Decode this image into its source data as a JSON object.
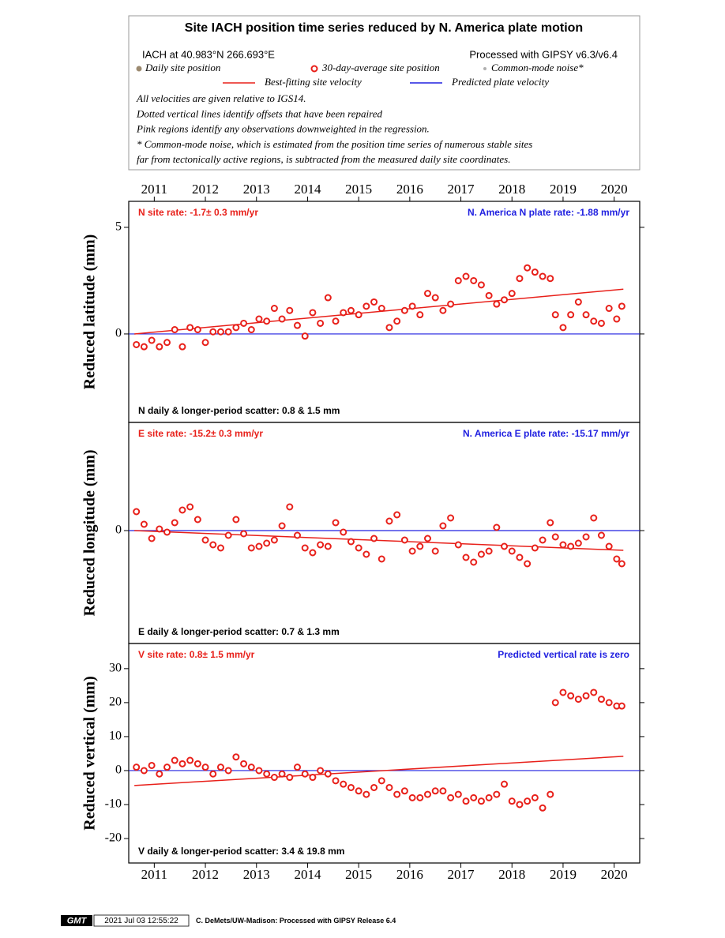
{
  "header": {
    "title": "Site IACH position time series reduced by N. America plate motion",
    "site": "IACH at 40.983°N 266.693°E",
    "processed": "Processed with GIPSY v6.3/v6.4",
    "legend": [
      {
        "label": "Daily site position",
        "color": "#9c8a70"
      },
      {
        "label": "30-day-average site position",
        "color": "#e8201a"
      },
      {
        "label": "Common-mode noise*",
        "color": "#b0b0b0"
      },
      {
        "label": "Best-fitting site velocity",
        "color": "#e8201a"
      },
      {
        "label": "Predicted plate velocity",
        "color": "#2020e0"
      }
    ],
    "notes": [
      "All velocities are given relative to IGS14.",
      "Dotted vertical lines identify offsets that have been repaired",
      "Pink regions identify any observations downweighted in the regression.",
      "* Common-mode noise, which is estimated from the position time series of numerous stable sites",
      "far from tectonically active regions, is subtracted from the measured daily site coordinates."
    ]
  },
  "chart_data": [
    {
      "type": "scatter",
      "ylabel": "Reduced latitude (mm)",
      "rate_label": "N site rate:  -1.7± 0.3 mm/yr",
      "plate_label": "N. America N plate rate: -1.88 mm/yr",
      "scatter_label": "N daily & longer-period scatter:   0.8 &   1.5 mm",
      "xlim": [
        2010.5,
        2020.5
      ],
      "xticks": [
        2011,
        2012,
        2013,
        2014,
        2015,
        2016,
        2017,
        2018,
        2019,
        2020
      ],
      "ylim": [
        -4.15,
        6.22
      ],
      "yticks": [
        0,
        5
      ],
      "x": [
        2010.65,
        2010.8,
        2010.95,
        2011.1,
        2011.25,
        2011.4,
        2011.55,
        2011.7,
        2011.85,
        2012.0,
        2012.15,
        2012.3,
        2012.45,
        2012.6,
        2012.75,
        2012.9,
        2013.05,
        2013.2,
        2013.35,
        2013.5,
        2013.65,
        2013.8,
        2013.95,
        2014.1,
        2014.25,
        2014.4,
        2014.55,
        2014.7,
        2014.85,
        2015.0,
        2015.15,
        2015.3,
        2015.45,
        2015.6,
        2015.75,
        2015.9,
        2016.05,
        2016.2,
        2016.35,
        2016.5,
        2016.65,
        2016.8,
        2016.95,
        2017.1,
        2017.25,
        2017.4,
        2017.55,
        2017.7,
        2017.85,
        2018.0,
        2018.15,
        2018.3,
        2018.45,
        2018.6,
        2018.75,
        2018.85,
        2019.0,
        2019.15,
        2019.3,
        2019.45,
        2019.6,
        2019.75,
        2019.9,
        2020.05,
        2020.15
      ],
      "values": [
        -0.5,
        -0.6,
        -0.3,
        -0.6,
        -0.4,
        0.2,
        -0.6,
        0.3,
        0.2,
        -0.4,
        0.1,
        0.1,
        0.1,
        0.3,
        0.5,
        0.2,
        0.7,
        0.6,
        1.2,
        0.7,
        1.1,
        0.4,
        -0.1,
        1.0,
        0.5,
        1.7,
        0.6,
        1.0,
        1.1,
        0.9,
        1.3,
        1.5,
        1.2,
        0.3,
        0.6,
        1.1,
        1.3,
        0.9,
        1.9,
        1.7,
        1.1,
        1.4,
        2.5,
        2.7,
        2.5,
        2.3,
        1.8,
        1.4,
        1.6,
        1.9,
        2.6,
        3.1,
        2.9,
        2.7,
        2.6,
        0.9,
        0.3,
        0.9,
        1.5,
        0.9,
        0.6,
        0.5,
        1.2,
        0.7,
        1.3
      ],
      "fit": {
        "x": [
          2010.61,
          2020.18
        ],
        "values": [
          0,
          2.1
        ]
      },
      "plate": {
        "values": [
          0,
          0
        ]
      }
    },
    {
      "type": "scatter",
      "ylabel": "Reduced longitude (mm)",
      "rate_label": "E site rate:  -15.2± 0.3 mm/yr",
      "plate_label": "N. America E plate rate: -15.17 mm/yr",
      "scatter_label": "E daily & longer-period scatter:   0.7 &   1.3 mm",
      "xlim": [
        2010.5,
        2020.5
      ],
      "xticks": [
        2011,
        2012,
        2013,
        2014,
        2015,
        2016,
        2017,
        2018,
        2019,
        2020
      ],
      "ylim": [
        -7.15,
        6.85
      ],
      "yticks": [
        0
      ],
      "x": [
        2010.65,
        2010.8,
        2010.95,
        2011.1,
        2011.25,
        2011.4,
        2011.55,
        2011.7,
        2011.85,
        2012.0,
        2012.15,
        2012.3,
        2012.45,
        2012.6,
        2012.75,
        2012.9,
        2013.05,
        2013.2,
        2013.35,
        2013.5,
        2013.65,
        2013.8,
        2013.95,
        2014.1,
        2014.25,
        2014.4,
        2014.55,
        2014.7,
        2014.85,
        2015.0,
        2015.15,
        2015.3,
        2015.45,
        2015.6,
        2015.75,
        2015.9,
        2016.05,
        2016.2,
        2016.35,
        2016.5,
        2016.65,
        2016.8,
        2016.95,
        2017.1,
        2017.25,
        2017.4,
        2017.55,
        2017.7,
        2017.85,
        2018.0,
        2018.15,
        2018.3,
        2018.45,
        2018.6,
        2018.75,
        2018.85,
        2019.0,
        2019.15,
        2019.3,
        2019.45,
        2019.6,
        2019.75,
        2019.9,
        2020.05,
        2020.15
      ],
      "values": [
        1.2,
        0.4,
        -0.5,
        0.1,
        -0.1,
        0.5,
        1.3,
        1.5,
        0.7,
        -0.6,
        -0.9,
        -1.1,
        -0.3,
        0.7,
        -0.2,
        -1.1,
        -1.0,
        -0.8,
        -0.6,
        0.3,
        1.5,
        -0.3,
        -1.1,
        -1.4,
        -0.9,
        -1.0,
        0.5,
        -0.1,
        -0.7,
        -1.1,
        -1.5,
        -0.5,
        -1.8,
        0.6,
        1.0,
        -0.6,
        -1.3,
        -1.0,
        -0.5,
        -1.3,
        0.3,
        0.8,
        -0.9,
        -1.7,
        -2.0,
        -1.5,
        -1.3,
        0.2,
        -1.0,
        -1.3,
        -1.7,
        -2.1,
        -1.1,
        -0.6,
        0.5,
        -0.4,
        -0.9,
        -1.0,
        -0.8,
        -0.4,
        0.8,
        -0.3,
        -1.0,
        -1.8,
        -2.1
      ],
      "fit": {
        "x": [
          2010.61,
          2020.18
        ],
        "values": [
          0,
          -1.25
        ]
      },
      "plate": {
        "values": [
          0,
          0
        ]
      }
    },
    {
      "type": "scatter",
      "ylabel": "Reduced vertical (mm)",
      "rate_label": "V site rate:   0.8± 1.5 mm/yr",
      "plate_label": "Predicted vertical rate is zero",
      "scatter_label": "V daily & longer-period scatter:   3.4 &  19.8 mm",
      "xlim": [
        2010.5,
        2020.5
      ],
      "xticks": [
        2011,
        2012,
        2013,
        2014,
        2015,
        2016,
        2017,
        2018,
        2019,
        2020
      ],
      "ylim": [
        -27.2,
        37.4
      ],
      "yticks": [
        -20,
        -10,
        0,
        10,
        20,
        30
      ],
      "x": [
        2010.65,
        2010.8,
        2010.95,
        2011.1,
        2011.25,
        2011.4,
        2011.55,
        2011.7,
        2011.85,
        2012.0,
        2012.15,
        2012.3,
        2012.45,
        2012.6,
        2012.75,
        2012.9,
        2013.05,
        2013.2,
        2013.35,
        2013.5,
        2013.65,
        2013.8,
        2013.95,
        2014.1,
        2014.25,
        2014.4,
        2014.55,
        2014.7,
        2014.85,
        2015.0,
        2015.15,
        2015.3,
        2015.45,
        2015.6,
        2015.75,
        2015.9,
        2016.05,
        2016.2,
        2016.35,
        2016.5,
        2016.65,
        2016.8,
        2016.95,
        2017.1,
        2017.25,
        2017.4,
        2017.55,
        2017.7,
        2017.85,
        2018.0,
        2018.15,
        2018.3,
        2018.45,
        2018.6,
        2018.75,
        2018.85,
        2019.0,
        2019.15,
        2019.3,
        2019.45,
        2019.6,
        2019.75,
        2019.9,
        2020.05,
        2020.15
      ],
      "values": [
        1,
        0,
        1.5,
        -1,
        1,
        3,
        2,
        3,
        2,
        1,
        -1,
        1,
        0,
        4,
        2,
        1,
        0,
        -1,
        -2,
        -1,
        -2,
        1,
        -1,
        -2,
        0,
        -1,
        -3,
        -4,
        -5,
        -6,
        -7,
        -5,
        -3,
        -5,
        -7,
        -6,
        -8,
        -8,
        -7,
        -6,
        -6,
        -8,
        -7,
        -9,
        -8,
        -9,
        -8,
        -7,
        -4,
        -9,
        -10,
        -9,
        -8,
        -11,
        -7,
        20,
        23,
        22,
        21,
        22,
        23,
        21,
        20,
        19,
        19
      ],
      "fit": {
        "x": [
          2010.61,
          2020.18
        ],
        "values": [
          -4.4,
          4.2
        ]
      },
      "plate": {
        "values": [
          0,
          0
        ]
      }
    }
  ],
  "footer": {
    "logo": "GMT",
    "stamp": "2021 Jul 03 12:55:22",
    "credit": "C. DeMets/UW-Madison: Processed with GIPSY Release 6.4"
  }
}
